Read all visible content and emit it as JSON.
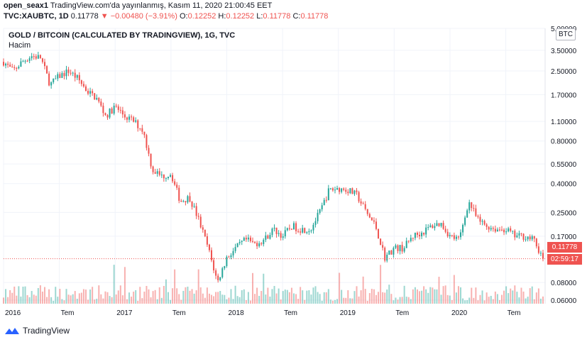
{
  "header": {
    "publisher": "open_seax1",
    "published_text": "TradingView.com'da yayınlanmış, Kasım 11, 2020 21:00:45 EET",
    "symbol": "TVC:XAUBTC, 1D",
    "last": "0.11778",
    "change": "▼ −0.00480 (−3.91%)",
    "o_label": "O:",
    "o_value": "0.12252",
    "h_label": "H:",
    "h_value": "0.12252",
    "l_label": "L:",
    "l_value": "0.11778",
    "c_label": "C:",
    "c_value": "0.11778"
  },
  "legend": {
    "title": "GOLD / BITCOIN (CALCULATED BY TRADINGVIEW), 1G, TVC",
    "volume": "Hacim",
    "currency": "BTC"
  },
  "price_tag": "0.11778",
  "countdown": "02:59:17",
  "brand": "TradingView",
  "colors": {
    "up": "#26a69a",
    "down": "#ef5350",
    "grid": "#f0f3fa",
    "price_line": "#ef5350"
  },
  "chart_data": {
    "type": "candlestick",
    "yscale": "log",
    "y_ticks": [
      "5.00000",
      "3.50000",
      "2.50000",
      "1.70000",
      "1.10000",
      "0.80000",
      "0.55000",
      "0.40000",
      "0.25000",
      "0.17000",
      "0.11778",
      "0.08000",
      "0.06000"
    ],
    "ylim": [
      0.06,
      5.0
    ],
    "x_ticks": [
      "2016",
      "Tem",
      "2017",
      "Tem",
      "2018",
      "Tem",
      "2019",
      "Tem",
      "2020",
      "Tem"
    ],
    "x_range": [
      "2016-01",
      "2020-11"
    ],
    "series": [
      {
        "name": "XAUBTC",
        "points": [
          [
            "2016-01",
            2.9
          ],
          [
            "2016-02",
            2.5
          ],
          [
            "2016-03",
            2.9
          ],
          [
            "2016-04",
            3.2
          ],
          [
            "2016-05",
            3.1
          ],
          [
            "2016-06",
            2.0
          ],
          [
            "2016-07",
            2.3
          ],
          [
            "2016-08",
            2.5
          ],
          [
            "2016-09",
            2.2
          ],
          [
            "2016-10",
            1.8
          ],
          [
            "2016-11",
            1.6
          ],
          [
            "2016-12",
            1.2
          ],
          [
            "2017-01",
            1.4
          ],
          [
            "2017-02",
            1.2
          ],
          [
            "2017-03",
            1.1
          ],
          [
            "2017-04",
            0.95
          ],
          [
            "2017-05",
            0.5
          ],
          [
            "2017-06",
            0.45
          ],
          [
            "2017-07",
            0.47
          ],
          [
            "2017-08",
            0.3
          ],
          [
            "2017-09",
            0.32
          ],
          [
            "2017-10",
            0.22
          ],
          [
            "2017-11",
            0.14
          ],
          [
            "2017-12",
            0.08
          ],
          [
            "2018-01",
            0.12
          ],
          [
            "2018-02",
            0.14
          ],
          [
            "2018-03",
            0.16
          ],
          [
            "2018-04",
            0.15
          ],
          [
            "2018-05",
            0.16
          ],
          [
            "2018-06",
            0.19
          ],
          [
            "2018-07",
            0.17
          ],
          [
            "2018-08",
            0.2
          ],
          [
            "2018-09",
            0.19
          ],
          [
            "2018-10",
            0.19
          ],
          [
            "2018-11",
            0.25
          ],
          [
            "2018-12",
            0.36
          ],
          [
            "2019-01",
            0.37
          ],
          [
            "2019-02",
            0.36
          ],
          [
            "2019-03",
            0.33
          ],
          [
            "2019-04",
            0.25
          ],
          [
            "2019-05",
            0.2
          ],
          [
            "2019-06",
            0.12
          ],
          [
            "2019-07",
            0.14
          ],
          [
            "2019-08",
            0.14
          ],
          [
            "2019-09",
            0.17
          ],
          [
            "2019-10",
            0.18
          ],
          [
            "2019-11",
            0.2
          ],
          [
            "2019-12",
            0.21
          ],
          [
            "2020-01",
            0.17
          ],
          [
            "2020-02",
            0.16
          ],
          [
            "2020-03",
            0.3
          ],
          [
            "2020-04",
            0.22
          ],
          [
            "2020-05",
            0.2
          ],
          [
            "2020-06",
            0.19
          ],
          [
            "2020-07",
            0.19
          ],
          [
            "2020-08",
            0.17
          ],
          [
            "2020-09",
            0.17
          ],
          [
            "2020-10",
            0.16
          ],
          [
            "2020-11",
            0.11778
          ]
        ]
      }
    ],
    "last_price": 0.11778,
    "volume_label": "Hacim"
  }
}
